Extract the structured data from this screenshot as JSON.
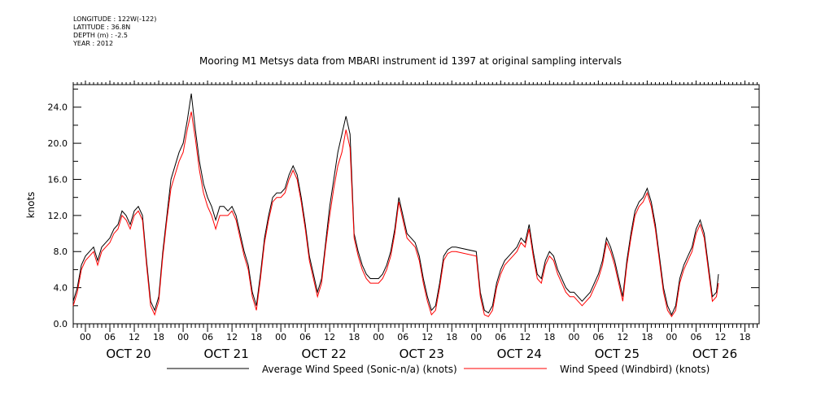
{
  "meta": {
    "longitude": "LONGITUDE : 122W(-122)",
    "latitude": "LATITUDE : 36.8N",
    "depth": "DEPTH (m) : -2.5",
    "year": "YEAR : 2012"
  },
  "chart_data": {
    "type": "line",
    "title": "Mooring M1 Metsys data from MBARI instrument id 1397 at original sampling intervals",
    "ylabel": "knots",
    "xlabel": "",
    "ylim": [
      0,
      26.5
    ],
    "yticks": [
      "0.0",
      "4.0",
      "8.0",
      "12.0",
      "16.0",
      "20.0",
      "24.0"
    ],
    "xlim_hours": [
      -3,
      165.5
    ],
    "hour_ticks": [
      "00",
      "06",
      "12",
      "18",
      "00",
      "06",
      "12",
      "18",
      "00",
      "06",
      "12",
      "18",
      "00",
      "06",
      "12",
      "18",
      "00",
      "06",
      "12",
      "18",
      "00",
      "06",
      "12",
      "18",
      "00",
      "06",
      "12",
      "18"
    ],
    "days": [
      "OCT 20",
      "OCT 21",
      "OCT 22",
      "OCT 23",
      "OCT 24",
      "OCT 25",
      "OCT 26"
    ],
    "grid": false,
    "legend_position": "bottom",
    "x_note": "x values are hours since OCT 20 00:00, 2012",
    "series": [
      {
        "name": "Average Wind Speed (Sonic-n/a) (knots)",
        "color": "#000000",
        "points": [
          [
            -3,
            2.5
          ],
          [
            -2,
            4
          ],
          [
            -1,
            6.5
          ],
          [
            0,
            7.5
          ],
          [
            1,
            8
          ],
          [
            2,
            8.5
          ],
          [
            3,
            7
          ],
          [
            4,
            8.5
          ],
          [
            5,
            9
          ],
          [
            6,
            9.5
          ],
          [
            7,
            10.5
          ],
          [
            8,
            11
          ],
          [
            9,
            12.5
          ],
          [
            10,
            12
          ],
          [
            11,
            11
          ],
          [
            12,
            12.5
          ],
          [
            13,
            13
          ],
          [
            14,
            12
          ],
          [
            15,
            7
          ],
          [
            16,
            2.5
          ],
          [
            17,
            1.5
          ],
          [
            18,
            3
          ],
          [
            19,
            8
          ],
          [
            20,
            12
          ],
          [
            21,
            16
          ],
          [
            22,
            17.5
          ],
          [
            23,
            19
          ],
          [
            24,
            20
          ],
          [
            25,
            22.5
          ],
          [
            26,
            25.5
          ],
          [
            27,
            21.5
          ],
          [
            28,
            18
          ],
          [
            29,
            15.5
          ],
          [
            30,
            14
          ],
          [
            31,
            13
          ],
          [
            32,
            11.5
          ],
          [
            33,
            13
          ],
          [
            34,
            13
          ],
          [
            35,
            12.5
          ],
          [
            36,
            13
          ],
          [
            37,
            12
          ],
          [
            38,
            10
          ],
          [
            39,
            8
          ],
          [
            40,
            6.5
          ],
          [
            41,
            3.5
          ],
          [
            42,
            2
          ],
          [
            43,
            5.5
          ],
          [
            44,
            9.5
          ],
          [
            45,
            12
          ],
          [
            46,
            14
          ],
          [
            47,
            14.5
          ],
          [
            48,
            14.5
          ],
          [
            49,
            15
          ],
          [
            50,
            16.5
          ],
          [
            51,
            17.5
          ],
          [
            52,
            16.5
          ],
          [
            53,
            14
          ],
          [
            54,
            11
          ],
          [
            55,
            7.5
          ],
          [
            56,
            5.5
          ],
          [
            57,
            3.5
          ],
          [
            58,
            5
          ],
          [
            59,
            9
          ],
          [
            60,
            13
          ],
          [
            61,
            16
          ],
          [
            62,
            19
          ],
          [
            63,
            21
          ],
          [
            64,
            23
          ],
          [
            65,
            21
          ],
          [
            66,
            10
          ],
          [
            67,
            8
          ],
          [
            68,
            6.5
          ],
          [
            69,
            5.5
          ],
          [
            70,
            5
          ],
          [
            71,
            5
          ],
          [
            72,
            5
          ],
          [
            73,
            5.5
          ],
          [
            74,
            6.5
          ],
          [
            75,
            8
          ],
          [
            76,
            10.5
          ],
          [
            77,
            14
          ],
          [
            78,
            12
          ],
          [
            79,
            10
          ],
          [
            80,
            9.5
          ],
          [
            81,
            9
          ],
          [
            82,
            7.5
          ],
          [
            83,
            5
          ],
          [
            84,
            3
          ],
          [
            85,
            1.5
          ],
          [
            86,
            2
          ],
          [
            87,
            4.5
          ],
          [
            88,
            7.5
          ],
          [
            89,
            8.2
          ],
          [
            90,
            8.5
          ],
          [
            91,
            8.5
          ],
          [
            96,
            8
          ],
          [
            97,
            3.5
          ],
          [
            98,
            1.5
          ],
          [
            99,
            1.2
          ],
          [
            100,
            2
          ],
          [
            101,
            4.5
          ],
          [
            102,
            6
          ],
          [
            103,
            7
          ],
          [
            104,
            7.5
          ],
          [
            105,
            8
          ],
          [
            106,
            8.5
          ],
          [
            107,
            9.5
          ],
          [
            108,
            9
          ],
          [
            109,
            11
          ],
          [
            110,
            8
          ],
          [
            111,
            5.5
          ],
          [
            112,
            5
          ],
          [
            113,
            7
          ],
          [
            114,
            8
          ],
          [
            115,
            7.5
          ],
          [
            116,
            6
          ],
          [
            117,
            5
          ],
          [
            118,
            4
          ],
          [
            119,
            3.5
          ],
          [
            120,
            3.5
          ],
          [
            121,
            3
          ],
          [
            122,
            2.5
          ],
          [
            123,
            3
          ],
          [
            124,
            3.5
          ],
          [
            125,
            4.5
          ],
          [
            126,
            5.5
          ],
          [
            127,
            7
          ],
          [
            128,
            9.5
          ],
          [
            129,
            8.5
          ],
          [
            130,
            7
          ],
          [
            131,
            5
          ],
          [
            132,
            3
          ],
          [
            133,
            7
          ],
          [
            134,
            10
          ],
          [
            135,
            12.5
          ],
          [
            136,
            13.5
          ],
          [
            137,
            14
          ],
          [
            138,
            15
          ],
          [
            139,
            13.5
          ],
          [
            140,
            11
          ],
          [
            141,
            7.5
          ],
          [
            142,
            4
          ],
          [
            143,
            2
          ],
          [
            144,
            1
          ],
          [
            145,
            2
          ],
          [
            146,
            5
          ],
          [
            147,
            6.5
          ],
          [
            148,
            7.5
          ],
          [
            149,
            8.5
          ],
          [
            150,
            10.5
          ],
          [
            151,
            11.5
          ],
          [
            152,
            10
          ],
          [
            153,
            6.5
          ],
          [
            154,
            3
          ],
          [
            155,
            3.5
          ],
          [
            155.5,
            5.5
          ]
        ]
      },
      {
        "name": "Wind Speed (Windbird) (knots)",
        "color": "#ff0000",
        "points": [
          [
            -3,
            2
          ],
          [
            -2,
            3.5
          ],
          [
            -1,
            6
          ],
          [
            0,
            7
          ],
          [
            1,
            7.5
          ],
          [
            2,
            8
          ],
          [
            3,
            6.5
          ],
          [
            4,
            8
          ],
          [
            5,
            8.5
          ],
          [
            6,
            9
          ],
          [
            7,
            10
          ],
          [
            8,
            10.5
          ],
          [
            9,
            12
          ],
          [
            10,
            11.5
          ],
          [
            11,
            10.5
          ],
          [
            12,
            12
          ],
          [
            13,
            12.5
          ],
          [
            14,
            11.5
          ],
          [
            15,
            6.5
          ],
          [
            16,
            2
          ],
          [
            17,
            1
          ],
          [
            18,
            2.5
          ],
          [
            19,
            7.5
          ],
          [
            20,
            11.5
          ],
          [
            21,
            15
          ],
          [
            22,
            16.5
          ],
          [
            23,
            18
          ],
          [
            24,
            19
          ],
          [
            25,
            21.5
          ],
          [
            26,
            23.5
          ],
          [
            27,
            20.5
          ],
          [
            28,
            17
          ],
          [
            29,
            14.5
          ],
          [
            30,
            13
          ],
          [
            31,
            12
          ],
          [
            32,
            10.5
          ],
          [
            33,
            12
          ],
          [
            34,
            12
          ],
          [
            35,
            12
          ],
          [
            36,
            12.5
          ],
          [
            37,
            11.5
          ],
          [
            38,
            9.5
          ],
          [
            39,
            7.5
          ],
          [
            40,
            6
          ],
          [
            41,
            3
          ],
          [
            42,
            1.5
          ],
          [
            43,
            5
          ],
          [
            44,
            9
          ],
          [
            45,
            11.5
          ],
          [
            46,
            13.5
          ],
          [
            47,
            14
          ],
          [
            48,
            14
          ],
          [
            49,
            14.5
          ],
          [
            50,
            16
          ],
          [
            51,
            17
          ],
          [
            52,
            16
          ],
          [
            53,
            13.5
          ],
          [
            54,
            10.5
          ],
          [
            55,
            7
          ],
          [
            56,
            5
          ],
          [
            57,
            3
          ],
          [
            58,
            4.5
          ],
          [
            59,
            8.5
          ],
          [
            60,
            12
          ],
          [
            61,
            15
          ],
          [
            62,
            17.5
          ],
          [
            63,
            19
          ],
          [
            64,
            21.5
          ],
          [
            65,
            19.5
          ],
          [
            66,
            9.5
          ],
          [
            67,
            7.5
          ],
          [
            68,
            6
          ],
          [
            69,
            5
          ],
          [
            70,
            4.5
          ],
          [
            71,
            4.5
          ],
          [
            72,
            4.5
          ],
          [
            73,
            5
          ],
          [
            74,
            6
          ],
          [
            75,
            7.5
          ],
          [
            76,
            10
          ],
          [
            77,
            13.5
          ],
          [
            78,
            11.5
          ],
          [
            79,
            9.5
          ],
          [
            80,
            9
          ],
          [
            81,
            8.5
          ],
          [
            82,
            7
          ],
          [
            83,
            4.5
          ],
          [
            84,
            2.5
          ],
          [
            85,
            1
          ],
          [
            86,
            1.5
          ],
          [
            87,
            4
          ],
          [
            88,
            7
          ],
          [
            89,
            7.8
          ],
          [
            90,
            8
          ],
          [
            91,
            8
          ],
          [
            96,
            7.5
          ],
          [
            97,
            3
          ],
          [
            98,
            1
          ],
          [
            99,
            0.8
          ],
          [
            100,
            1.5
          ],
          [
            101,
            4
          ],
          [
            102,
            5.5
          ],
          [
            103,
            6.5
          ],
          [
            104,
            7
          ],
          [
            105,
            7.5
          ],
          [
            106,
            8
          ],
          [
            107,
            9
          ],
          [
            108,
            8.5
          ],
          [
            109,
            10.5
          ],
          [
            110,
            7.5
          ],
          [
            111,
            5
          ],
          [
            112,
            4.5
          ],
          [
            113,
            6.5
          ],
          [
            114,
            7.5
          ],
          [
            115,
            7
          ],
          [
            116,
            5.5
          ],
          [
            117,
            4.5
          ],
          [
            118,
            3.5
          ],
          [
            119,
            3
          ],
          [
            120,
            3
          ],
          [
            121,
            2.5
          ],
          [
            122,
            2
          ],
          [
            123,
            2.5
          ],
          [
            124,
            3
          ],
          [
            125,
            4
          ],
          [
            126,
            5
          ],
          [
            127,
            6.5
          ],
          [
            128,
            9
          ],
          [
            129,
            8
          ],
          [
            130,
            6.5
          ],
          [
            131,
            4.5
          ],
          [
            132,
            2.5
          ],
          [
            133,
            6.5
          ],
          [
            134,
            9.5
          ],
          [
            135,
            12
          ],
          [
            136,
            13
          ],
          [
            137,
            13.5
          ],
          [
            138,
            14.5
          ],
          [
            139,
            13
          ],
          [
            140,
            10.5
          ],
          [
            141,
            7
          ],
          [
            142,
            3.5
          ],
          [
            143,
            1.5
          ],
          [
            144,
            0.8
          ],
          [
            145,
            1.5
          ],
          [
            146,
            4.5
          ],
          [
            147,
            6
          ],
          [
            148,
            7
          ],
          [
            149,
            8
          ],
          [
            150,
            10
          ],
          [
            151,
            11
          ],
          [
            152,
            9.5
          ],
          [
            153,
            6
          ],
          [
            154,
            2.5
          ],
          [
            155,
            3
          ],
          [
            155.5,
            4.5
          ]
        ]
      }
    ]
  }
}
